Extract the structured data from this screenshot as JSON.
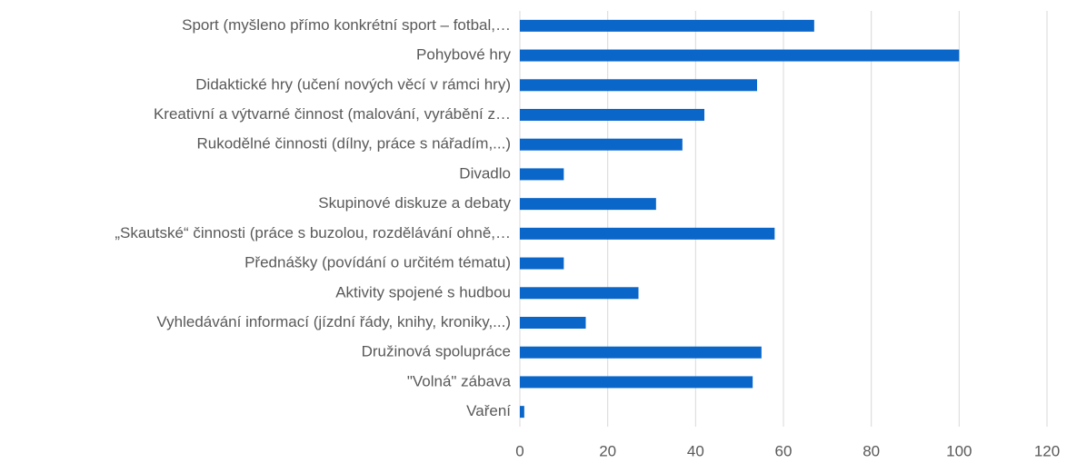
{
  "chart_data": {
    "type": "bar",
    "orientation": "horizontal",
    "categories": [
      "Sport (myšleno přímo konkrétní sport – fotbal,…",
      "Pohybové hry",
      "Didaktické hry (učení nových věcí v rámci hry)",
      "Kreativní a výtvarné činnost (malování, vyrábění z…",
      "Rukodělné činnosti (dílny, práce s nářadím,...)",
      "Divadlo",
      "Skupinové diskuze a debaty",
      "„Skautské“ činnosti (práce s buzolou, rozdělávání ohně,…",
      "Přednášky (povídání o určitém tématu)",
      "Aktivity spojené s hudbou",
      "Vyhledávání informací (jízdní řády, knihy, kroniky,...)",
      "Družinová spolupráce",
      "\"Volná\" zábava",
      "Vaření"
    ],
    "values": [
      67,
      100,
      54,
      42,
      37,
      10,
      31,
      58,
      10,
      27,
      15,
      55,
      53,
      1
    ],
    "color": "#0a66c8",
    "xlim": [
      0,
      120
    ],
    "xticks": [
      0,
      20,
      40,
      60,
      80,
      100,
      120
    ],
    "grid": true
  }
}
